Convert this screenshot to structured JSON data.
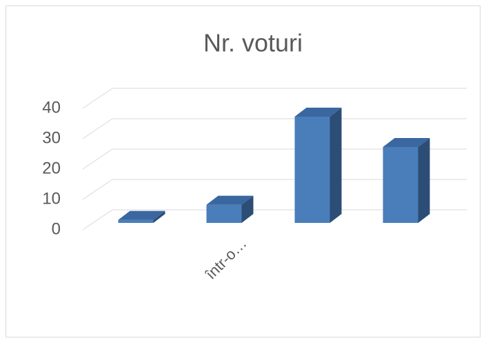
{
  "chart_data": {
    "type": "bar3d",
    "title": "Nr. voturi",
    "categories": [
      null,
      "într-o…",
      null,
      null
    ],
    "values": [
      1,
      6,
      35,
      25
    ],
    "color": "#4a7ebb",
    "ylim": [
      0,
      40
    ],
    "yticks": [
      0,
      10,
      20,
      30,
      40
    ],
    "grid": true
  }
}
